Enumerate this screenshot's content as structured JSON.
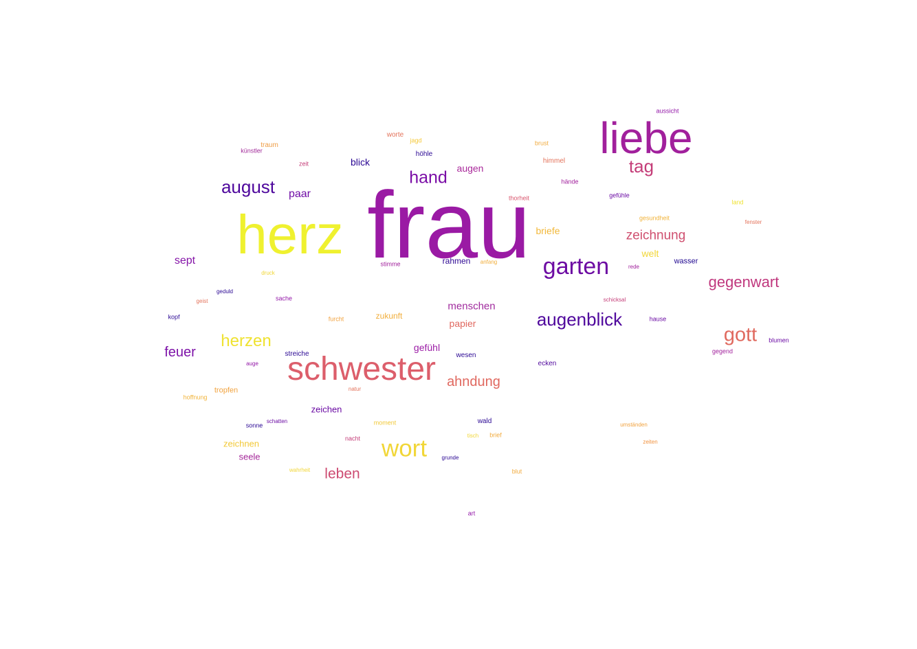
{
  "words": [
    {
      "text": "frau",
      "color": "#9a1aa4"
    },
    {
      "text": "liebe",
      "color": "#a1209c"
    },
    {
      "text": "herz",
      "color": "#eff12f"
    },
    {
      "text": "schwester",
      "color": "#dc5e6b"
    },
    {
      "text": "garten",
      "color": "#6c0aa2"
    },
    {
      "text": "wort",
      "color": "#f1d637"
    },
    {
      "text": "augenblick",
      "color": "#4f079c"
    },
    {
      "text": "gott",
      "color": "#e06a5f"
    },
    {
      "text": "august",
      "color": "#4d069c"
    },
    {
      "text": "gegenwart",
      "color": "#c0387e"
    },
    {
      "text": "tag",
      "color": "#c43d78"
    },
    {
      "text": "herzen",
      "color": "#efe231"
    },
    {
      "text": "hand",
      "color": "#7a0da6"
    },
    {
      "text": "zeichnung",
      "color": "#cf4f6f"
    },
    {
      "text": "ahndung",
      "color": "#e0685f"
    },
    {
      "text": "leben",
      "color": "#cd4b72"
    },
    {
      "text": "feuer",
      "color": "#7d12a8"
    },
    {
      "text": "menschen",
      "color": "#a02a9d"
    },
    {
      "text": "sept",
      "color": "#8413a7"
    },
    {
      "text": "paar",
      "color": "#6f0da6"
    },
    {
      "text": "augen",
      "color": "#a9289a"
    },
    {
      "text": "briefe",
      "color": "#f2b83a"
    },
    {
      "text": "papier",
      "color": "#e0685f"
    },
    {
      "text": "gefühl",
      "color": "#9b1ca6"
    },
    {
      "text": "blick",
      "color": "#2a0793"
    },
    {
      "text": "zeichen",
      "color": "#6a0aa3"
    },
    {
      "text": "zeichnen",
      "color": "#f2c836"
    },
    {
      "text": "seele",
      "color": "#a42799"
    },
    {
      "text": "welt",
      "color": "#f1d637"
    },
    {
      "text": "zukunft",
      "color": "#f1ae3c"
    },
    {
      "text": "rahmen",
      "color": "#2d0793"
    },
    {
      "text": "wasser",
      "color": "#200890"
    },
    {
      "text": "tropfen",
      "color": "#f1a23e"
    },
    {
      "text": "aussicht",
      "color": "#9216a7"
    },
    {
      "text": "worte",
      "color": "#e3725a"
    },
    {
      "text": "jagd",
      "color": "#f5c838"
    },
    {
      "text": "traum",
      "color": "#ee9c45"
    },
    {
      "text": "künstler",
      "color": "#a22c9a"
    },
    {
      "text": "höhle",
      "color": "#2a0793"
    },
    {
      "text": "zeit",
      "color": "#c43d78"
    },
    {
      "text": "brust",
      "color": "#f1aa3d"
    },
    {
      "text": "himmel",
      "color": "#e3725a"
    },
    {
      "text": "hände",
      "color": "#a1209c"
    },
    {
      "text": "gefühle",
      "color": "#6a0aa3"
    },
    {
      "text": "land",
      "color": "#efe231"
    },
    {
      "text": "thorheit",
      "color": "#d9566e"
    },
    {
      "text": "fenster",
      "color": "#e3725a"
    },
    {
      "text": "gesundheit",
      "color": "#f1b33a"
    },
    {
      "text": "anfang",
      "color": "#f1ae3c"
    },
    {
      "text": "stimme",
      "color": "#a1209c"
    },
    {
      "text": "druck",
      "color": "#f1d637"
    },
    {
      "text": "rede",
      "color": "#a1209c"
    },
    {
      "text": "geduld",
      "color": "#2a0793"
    },
    {
      "text": "geist",
      "color": "#e3725a"
    },
    {
      "text": "sache",
      "color": "#9216a7"
    },
    {
      "text": "schicksal",
      "color": "#c43d78"
    },
    {
      "text": "kopf",
      "color": "#2a0793"
    },
    {
      "text": "furcht",
      "color": "#f1a23e"
    },
    {
      "text": "hause",
      "color": "#6a0aa3"
    },
    {
      "text": "blumen",
      "color": "#6a0aa3"
    },
    {
      "text": "gegend",
      "color": "#a1209c"
    },
    {
      "text": "streiche",
      "color": "#2a0793"
    },
    {
      "text": "wesen",
      "color": "#2a0793"
    },
    {
      "text": "auge",
      "color": "#9216a7"
    },
    {
      "text": "ecken",
      "color": "#4f079c"
    },
    {
      "text": "natur",
      "color": "#e3725a"
    },
    {
      "text": "hoffnung",
      "color": "#f1b33a"
    },
    {
      "text": "moment",
      "color": "#f1c836"
    },
    {
      "text": "wald",
      "color": "#2a0793"
    },
    {
      "text": "sonne",
      "color": "#2a0793"
    },
    {
      "text": "schatten",
      "color": "#6a0aa3"
    },
    {
      "text": "umständen",
      "color": "#f1a23e"
    },
    {
      "text": "tisch",
      "color": "#f1d637"
    },
    {
      "text": "brief",
      "color": "#f1aa3d"
    },
    {
      "text": "nacht",
      "color": "#c43d78"
    },
    {
      "text": "zeiten",
      "color": "#f1923f"
    },
    {
      "text": "grunde",
      "color": "#2a0793"
    },
    {
      "text": "wahrheit",
      "color": "#f1d637"
    },
    {
      "text": "blut",
      "color": "#f1aa3d"
    },
    {
      "text": "art",
      "color": "#9216a7"
    }
  ]
}
